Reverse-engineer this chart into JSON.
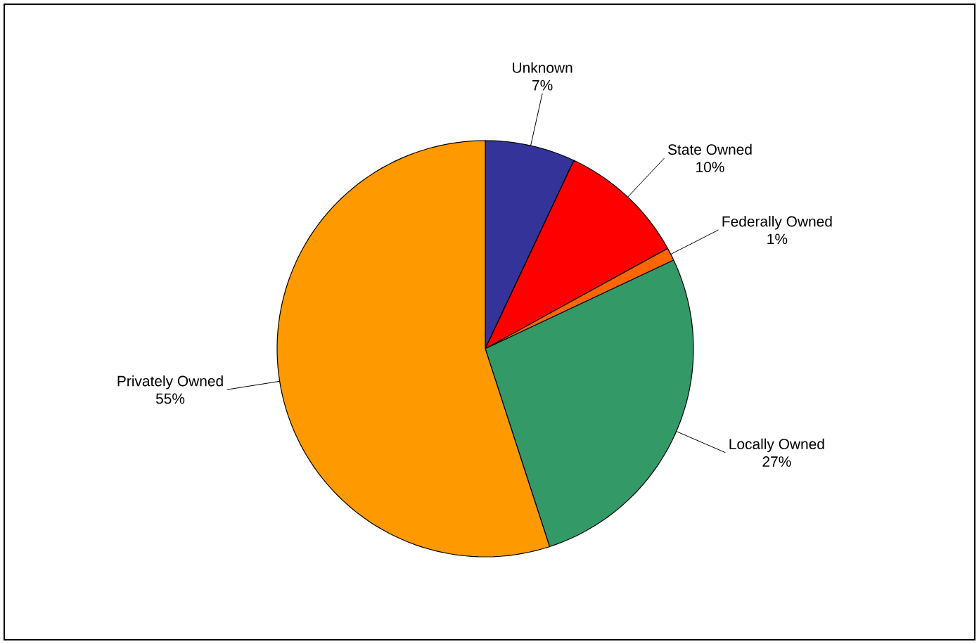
{
  "chart_data": {
    "type": "pie",
    "categories": [
      "Unknown",
      "State Owned",
      "Federally Owned",
      "Locally Owned",
      "Privately Owned"
    ],
    "values": [
      7,
      10,
      1,
      27,
      55
    ],
    "colors": [
      "#333399",
      "#ff0000",
      "#ff6600",
      "#339966",
      "#ff9900"
    ],
    "value_labels": [
      "7%",
      "10%",
      "1%",
      "27%",
      "55%"
    ]
  }
}
